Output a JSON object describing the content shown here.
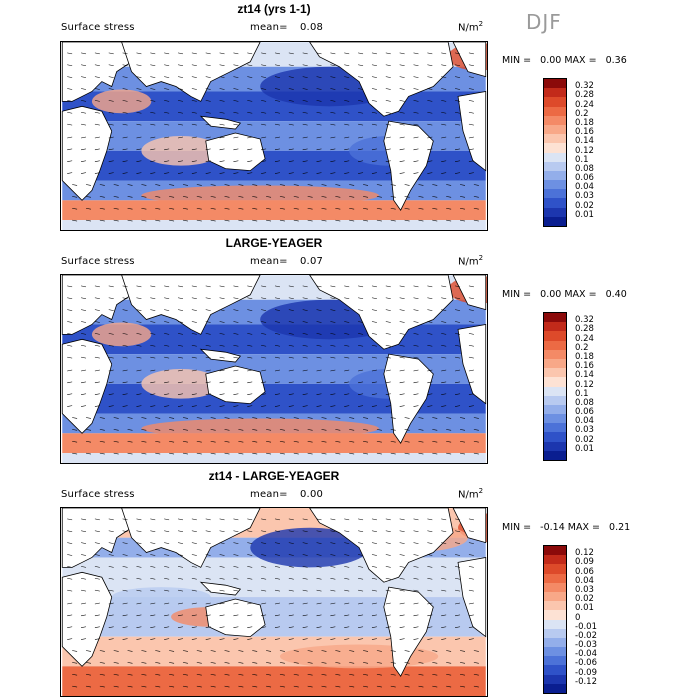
{
  "season": "DJF",
  "units": "N/m",
  "units_exp": "2",
  "panels": [
    {
      "title": "zt14 (yrs 1-1)",
      "subtitle": "Surface stress",
      "mean_label": "mean=",
      "mean_value": "0.08",
      "min_label": "MIN =",
      "min_value": "0.00",
      "max_label": "MAX =",
      "max_value": "0.36",
      "colorbar_labels": [
        "0.32",
        "0.28",
        "0.24",
        "0.2",
        "0.18",
        "0.16",
        "0.14",
        "0.12",
        "0.1",
        "0.08",
        "0.06",
        "0.04",
        "0.03",
        "0.02",
        "0.01"
      ],
      "colorbar_colors": [
        "#8b0a0a",
        "#c22a1a",
        "#dd4a2a",
        "#ec6a44",
        "#f48a66",
        "#f8a888",
        "#fbc6ae",
        "#fde2d4",
        "#dbe4f4",
        "#b8caf0",
        "#93aeea",
        "#6d90e2",
        "#4c72d8",
        "#2f52c8",
        "#1c36ae",
        "#0a1e90"
      ]
    },
    {
      "title": "LARGE-YEAGER",
      "subtitle": "Surface stress",
      "mean_label": "mean=",
      "mean_value": "0.07",
      "min_label": "MIN =",
      "min_value": "0.00",
      "max_label": "MAX =",
      "max_value": "0.40",
      "colorbar_labels": [
        "0.32",
        "0.28",
        "0.24",
        "0.2",
        "0.18",
        "0.16",
        "0.14",
        "0.12",
        "0.1",
        "0.08",
        "0.06",
        "0.04",
        "0.03",
        "0.02",
        "0.01"
      ],
      "colorbar_colors": [
        "#8b0a0a",
        "#c22a1a",
        "#dd4a2a",
        "#ec6a44",
        "#f48a66",
        "#f8a888",
        "#fbc6ae",
        "#fde2d4",
        "#dbe4f4",
        "#b8caf0",
        "#93aeea",
        "#6d90e2",
        "#4c72d8",
        "#2f52c8",
        "#1c36ae",
        "#0a1e90"
      ]
    },
    {
      "title": "zt14 - LARGE-YEAGER",
      "subtitle": "Surface stress",
      "mean_label": "mean=",
      "mean_value": "0.00",
      "min_label": "MIN =",
      "min_value": "-0.14",
      "max_label": "MAX =",
      "max_value": "0.21",
      "colorbar_labels": [
        "0.12",
        "0.09",
        "0.06",
        "0.04",
        "0.03",
        "0.02",
        "0.01",
        "0",
        "-0.01",
        "-0.02",
        "-0.03",
        "-0.04",
        "-0.06",
        "-0.09",
        "-0.12"
      ],
      "colorbar_colors": [
        "#8b0a0a",
        "#c22a1a",
        "#dd4a2a",
        "#ec6a44",
        "#f48a66",
        "#f8a888",
        "#fbc6ae",
        "#fde2d4",
        "#dbe4f4",
        "#b8caf0",
        "#93aeea",
        "#6d90e2",
        "#4c72d8",
        "#2f52c8",
        "#1c36ae",
        "#0a1e90"
      ]
    }
  ]
}
